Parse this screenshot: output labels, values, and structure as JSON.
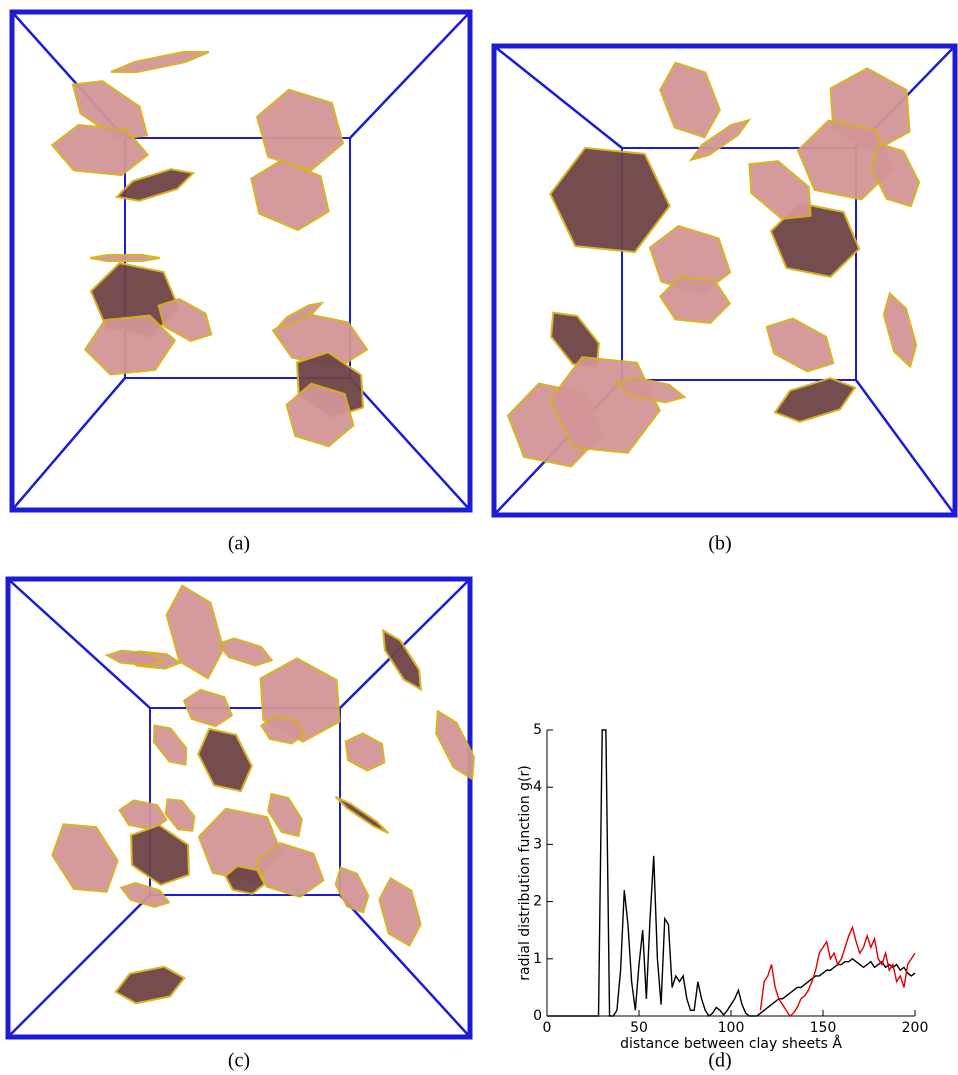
{
  "figure": {
    "captions": [
      "(a)",
      "(b)",
      "(c)",
      "(d)"
    ]
  },
  "chart_data": {
    "type": "line",
    "x_label": "distance between clay sheets Å",
    "y_label": "radial distribution function g(r)",
    "xlim": [
      0,
      200
    ],
    "xticks": [
      0,
      50,
      100,
      150,
      200
    ],
    "ylim": [
      0,
      5
    ],
    "yticks": [
      0,
      1,
      2,
      3,
      4,
      5
    ],
    "x": [
      0,
      2,
      4,
      6,
      8,
      10,
      12,
      14,
      16,
      18,
      20,
      22,
      24,
      26,
      28,
      30,
      32,
      34,
      36,
      38,
      40,
      42,
      44,
      46,
      48,
      50,
      52,
      54,
      56,
      58,
      60,
      62,
      64,
      66,
      68,
      70,
      72,
      74,
      76,
      78,
      80,
      82,
      84,
      86,
      88,
      90,
      92,
      94,
      96,
      98,
      100,
      102,
      104,
      106,
      108,
      110,
      112,
      114,
      116,
      118,
      120,
      122,
      124,
      126,
      128,
      130,
      132,
      134,
      136,
      138,
      140,
      142,
      144,
      146,
      148,
      150,
      152,
      154,
      156,
      158,
      160,
      162,
      164,
      166,
      168,
      170,
      172,
      174,
      176,
      178,
      180,
      182,
      184,
      186,
      188,
      190,
      192,
      194,
      196,
      198,
      200
    ],
    "series": [
      {
        "color": "#000000",
        "values": [
          0,
          0,
          0,
          0,
          0,
          0,
          0,
          0,
          0,
          0,
          0,
          0,
          0,
          0,
          0,
          5,
          5,
          0,
          0,
          0.1,
          0.8,
          2.2,
          1.6,
          0.6,
          0.1,
          0.9,
          1.5,
          0.3,
          1.7,
          2.8,
          1.0,
          0.2,
          1.7,
          1.6,
          0.5,
          0.7,
          0.6,
          0.7,
          0.3,
          0.1,
          0.1,
          0.6,
          0.3,
          0.1,
          0,
          0.05,
          0.15,
          0.1,
          0.02,
          0.1,
          0.2,
          0.3,
          0.45,
          0.2,
          0.05,
          0,
          0,
          0,
          0.05,
          0.1,
          0.15,
          0.2,
          0.25,
          0.3,
          0.3,
          0.35,
          0.4,
          0.45,
          0.5,
          0.5,
          0.55,
          0.6,
          0.65,
          0.7,
          0.7,
          0.75,
          0.8,
          0.8,
          0.85,
          0.9,
          0.9,
          0.95,
          0.95,
          1.0,
          0.95,
          0.9,
          0.85,
          0.9,
          0.95,
          0.85,
          0.9,
          0.95,
          0.85,
          0.9,
          0.85,
          0.9,
          0.8,
          0.85,
          0.75,
          0.7,
          0.75
        ]
      },
      {
        "color": "#e00000",
        "values": [
          null,
          null,
          null,
          null,
          null,
          null,
          null,
          null,
          null,
          null,
          null,
          null,
          null,
          null,
          null,
          null,
          null,
          null,
          null,
          null,
          null,
          null,
          null,
          null,
          null,
          null,
          null,
          null,
          null,
          null,
          null,
          null,
          null,
          null,
          null,
          null,
          null,
          null,
          null,
          null,
          null,
          null,
          null,
          null,
          null,
          null,
          null,
          null,
          null,
          null,
          null,
          null,
          null,
          null,
          null,
          null,
          null,
          null,
          0.1,
          0.6,
          0.7,
          0.9,
          0.5,
          0.3,
          0.2,
          0.1,
          0,
          0.05,
          0.15,
          0.3,
          0.35,
          0.45,
          0.6,
          0.8,
          1.1,
          1.2,
          1.3,
          1.0,
          1.1,
          0.9,
          1.0,
          1.2,
          1.4,
          1.55,
          1.3,
          1.1,
          1.2,
          1.4,
          1.2,
          1.35,
          1.0,
          0.9,
          1.1,
          0.8,
          0.9,
          0.6,
          0.7,
          0.5,
          0.9,
          1.0,
          1.1
        ]
      }
    ]
  }
}
